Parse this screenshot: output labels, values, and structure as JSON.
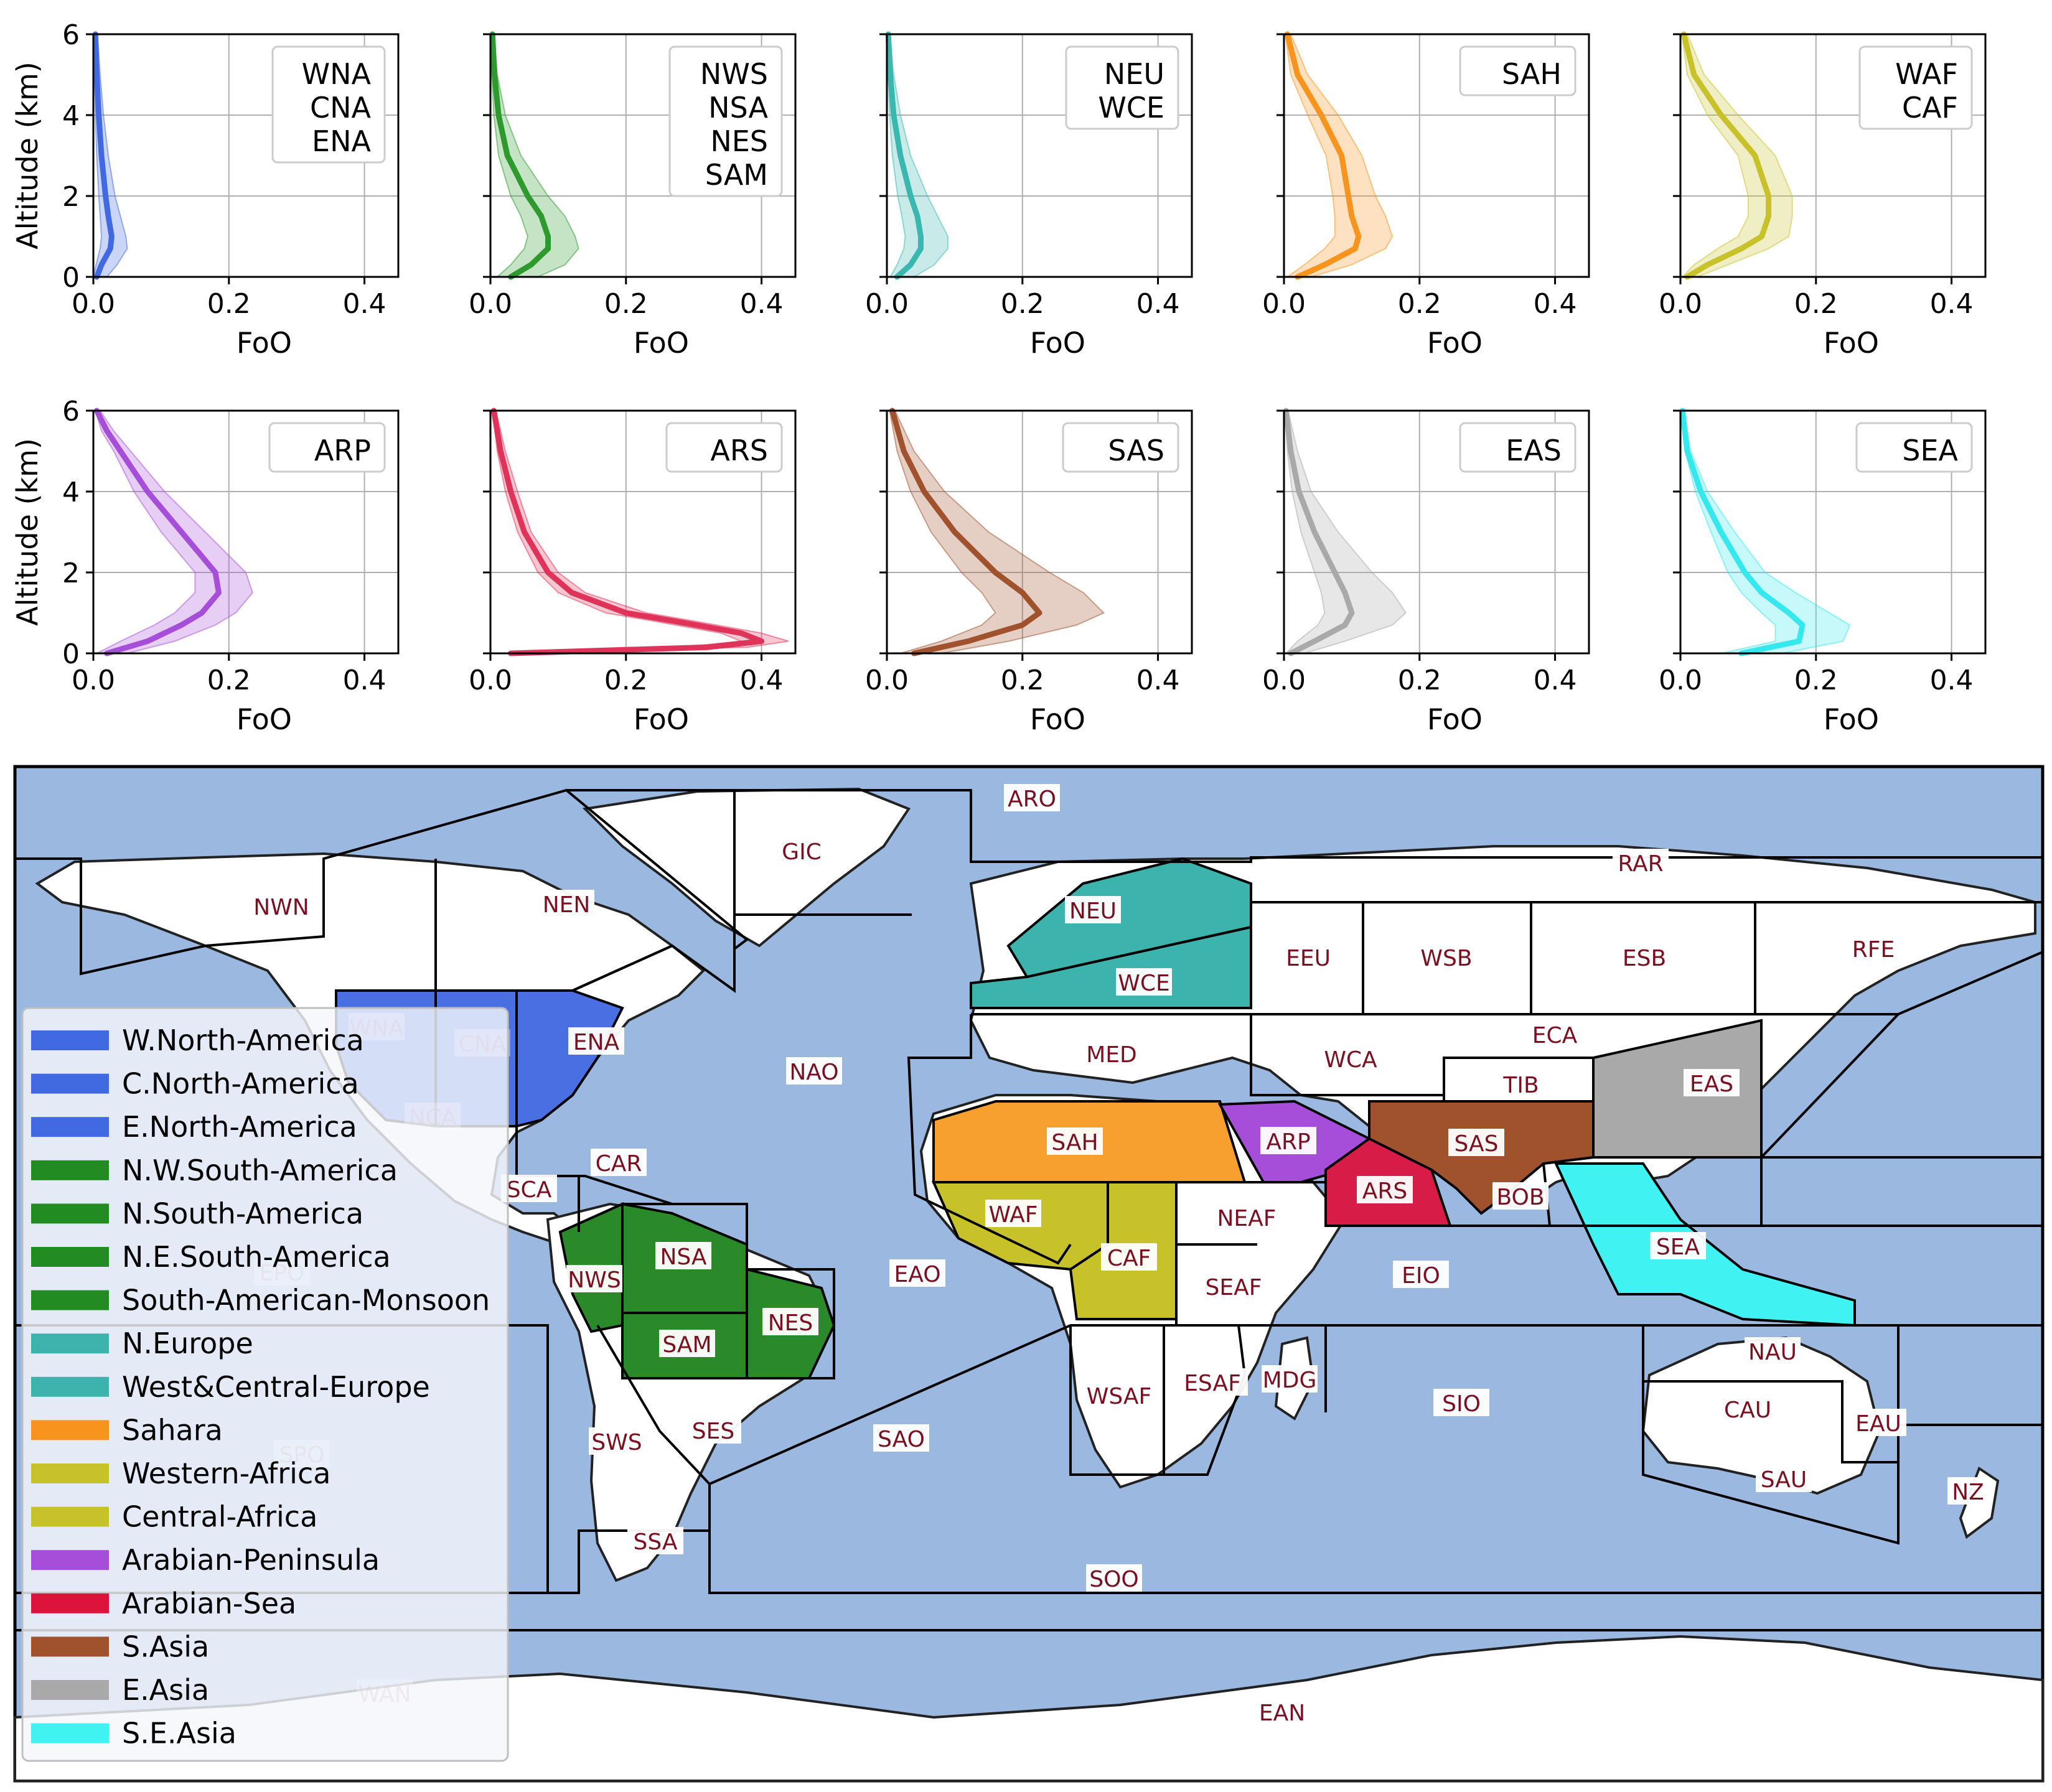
{
  "chart_data": [
    {
      "type": "line",
      "panel": "WNA/CNA/ENA",
      "legend_box": [
        "WNA",
        "CNA",
        "ENA"
      ],
      "color": "#4169e1",
      "xlabel": "FoO",
      "ylabel": "Altitude (km)",
      "xlim": [
        0,
        0.45
      ],
      "ylim": [
        0,
        6
      ],
      "xticks": [
        "0.0",
        "0.2",
        "0.4"
      ],
      "yticks": [
        "0",
        "2",
        "4",
        "6"
      ],
      "altitude": [
        0,
        0.3,
        0.7,
        1,
        1.5,
        2,
        3,
        4,
        5,
        6
      ],
      "mean": [
        0.005,
        0.012,
        0.025,
        0.027,
        0.022,
        0.018,
        0.012,
        0.008,
        0.005,
        0.003
      ],
      "lower": [
        0,
        0.004,
        0.01,
        0.012,
        0.01,
        0.008,
        0.005,
        0.003,
        0.002,
        0.001
      ],
      "upper": [
        0.02,
        0.035,
        0.05,
        0.048,
        0.04,
        0.032,
        0.022,
        0.015,
        0.01,
        0.006
      ]
    },
    {
      "type": "line",
      "panel": "NWS/NSA/NES/SAM",
      "legend_box": [
        "NWS",
        "NSA",
        "NES",
        "SAM"
      ],
      "color": "#2e9a2e",
      "xlabel": "FoO",
      "ylabel": "",
      "xlim": [
        0,
        0.45
      ],
      "ylim": [
        0,
        6
      ],
      "xticks": [
        "0.0",
        "0.2",
        "0.4"
      ],
      "yticks": [],
      "altitude": [
        0,
        0.3,
        0.7,
        1,
        1.5,
        2,
        3,
        4,
        5,
        6
      ],
      "mean": [
        0.03,
        0.06,
        0.085,
        0.085,
        0.075,
        0.055,
        0.025,
        0.012,
        0.006,
        0.003
      ],
      "lower": [
        0.01,
        0.03,
        0.05,
        0.055,
        0.045,
        0.03,
        0.012,
        0.005,
        0.002,
        0.001
      ],
      "upper": [
        0.07,
        0.11,
        0.13,
        0.125,
        0.11,
        0.085,
        0.045,
        0.022,
        0.01,
        0.005
      ]
    },
    {
      "type": "line",
      "panel": "NEU/WCE",
      "legend_box": [
        "NEU",
        "WCE"
      ],
      "color": "#3ab8b0",
      "xlabel": "FoO",
      "ylabel": "",
      "xlim": [
        0,
        0.45
      ],
      "ylim": [
        0,
        6
      ],
      "xticks": [
        "0.0",
        "0.2",
        "0.4"
      ],
      "yticks": [],
      "altitude": [
        0,
        0.3,
        0.7,
        1,
        1.5,
        2,
        3,
        4,
        5,
        6
      ],
      "mean": [
        0.015,
        0.035,
        0.05,
        0.05,
        0.045,
        0.035,
        0.02,
        0.01,
        0.005,
        0.002
      ],
      "lower": [
        0.005,
        0.015,
        0.025,
        0.027,
        0.022,
        0.016,
        0.008,
        0.004,
        0.002,
        0.001
      ],
      "upper": [
        0.04,
        0.07,
        0.09,
        0.09,
        0.075,
        0.06,
        0.035,
        0.02,
        0.01,
        0.004
      ]
    },
    {
      "type": "line",
      "panel": "SAH",
      "legend_box": [
        "SAH"
      ],
      "color": "#f7941d",
      "xlabel": "FoO",
      "ylabel": "",
      "xlim": [
        0,
        0.45
      ],
      "ylim": [
        0,
        6
      ],
      "xticks": [
        "0.0",
        "0.2",
        "0.4"
      ],
      "yticks": [],
      "altitude": [
        0,
        0.3,
        0.7,
        1,
        1.5,
        2,
        3,
        4,
        5,
        6
      ],
      "mean": [
        0.02,
        0.06,
        0.105,
        0.11,
        0.1,
        0.095,
        0.085,
        0.055,
        0.02,
        0.005
      ],
      "lower": [
        0.005,
        0.03,
        0.06,
        0.075,
        0.075,
        0.072,
        0.062,
        0.035,
        0.01,
        0.002
      ],
      "upper": [
        0.04,
        0.1,
        0.15,
        0.16,
        0.15,
        0.135,
        0.115,
        0.08,
        0.035,
        0.01
      ]
    },
    {
      "type": "line",
      "panel": "WAF/CAF",
      "legend_box": [
        "WAF",
        "CAF"
      ],
      "color": "#c8c22a",
      "xlabel": "FoO",
      "ylabel": "",
      "xlim": [
        0,
        0.45
      ],
      "ylim": [
        0,
        6
      ],
      "xticks": [
        "0.0",
        "0.2",
        "0.4"
      ],
      "yticks": [],
      "altitude": [
        0,
        0.3,
        0.7,
        1,
        1.5,
        2,
        3,
        4,
        5,
        6
      ],
      "mean": [
        0.01,
        0.04,
        0.09,
        0.12,
        0.13,
        0.13,
        0.11,
        0.06,
        0.02,
        0.005
      ],
      "lower": [
        0.003,
        0.02,
        0.055,
        0.085,
        0.1,
        0.1,
        0.085,
        0.04,
        0.01,
        0.002
      ],
      "upper": [
        0.025,
        0.07,
        0.13,
        0.16,
        0.165,
        0.165,
        0.14,
        0.085,
        0.035,
        0.01
      ]
    },
    {
      "type": "line",
      "panel": "ARP",
      "legend_box": [
        "ARP"
      ],
      "color": "#a64ed9",
      "xlabel": "FoO",
      "ylabel": "Altitude (km)",
      "xlim": [
        0,
        0.45
      ],
      "ylim": [
        0,
        6
      ],
      "xticks": [
        "0.0",
        "0.2",
        "0.4"
      ],
      "yticks": [
        "0",
        "2",
        "4",
        "6"
      ],
      "altitude": [
        0,
        0.3,
        0.7,
        1,
        1.5,
        2,
        3,
        4,
        5,
        5.5,
        6
      ],
      "mean": [
        0.02,
        0.08,
        0.13,
        0.16,
        0.185,
        0.18,
        0.13,
        0.08,
        0.04,
        0.02,
        0.005
      ],
      "lower": [
        0.005,
        0.04,
        0.09,
        0.12,
        0.15,
        0.15,
        0.1,
        0.06,
        0.03,
        0.012,
        0.003
      ],
      "upper": [
        0.05,
        0.12,
        0.18,
        0.21,
        0.235,
        0.225,
        0.165,
        0.105,
        0.055,
        0.03,
        0.01
      ]
    },
    {
      "type": "line",
      "panel": "ARS",
      "legend_box": [
        "ARS"
      ],
      "color": "#e0335a",
      "xlabel": "FoO",
      "ylabel": "",
      "xlim": [
        0,
        0.45
      ],
      "ylim": [
        0,
        6
      ],
      "xticks": [
        "0.0",
        "0.2",
        "0.4"
      ],
      "yticks": [],
      "altitude": [
        0,
        0.15,
        0.3,
        0.5,
        0.8,
        1,
        1.5,
        2,
        3,
        4,
        5,
        6
      ],
      "mean": [
        0.03,
        0.32,
        0.4,
        0.37,
        0.27,
        0.2,
        0.12,
        0.085,
        0.05,
        0.03,
        0.015,
        0.005
      ],
      "lower": [
        0.02,
        0.28,
        0.37,
        0.34,
        0.24,
        0.17,
        0.1,
        0.07,
        0.04,
        0.022,
        0.01,
        0.003
      ],
      "upper": [
        0.05,
        0.38,
        0.44,
        0.4,
        0.3,
        0.23,
        0.14,
        0.1,
        0.06,
        0.04,
        0.022,
        0.008
      ]
    },
    {
      "type": "line",
      "panel": "SAS",
      "legend_box": [
        "SAS"
      ],
      "color": "#a0522d",
      "xlabel": "FoO",
      "ylabel": "",
      "xlim": [
        0,
        0.45
      ],
      "ylim": [
        0,
        6
      ],
      "xticks": [
        "0.0",
        "0.2",
        "0.4"
      ],
      "yticks": [],
      "altitude": [
        0,
        0.3,
        0.7,
        1,
        1.5,
        2,
        3,
        4,
        5,
        6
      ],
      "mean": [
        0.04,
        0.12,
        0.2,
        0.225,
        0.2,
        0.16,
        0.1,
        0.055,
        0.025,
        0.008
      ],
      "lower": [
        0.02,
        0.08,
        0.14,
        0.16,
        0.14,
        0.11,
        0.065,
        0.035,
        0.015,
        0.004
      ],
      "upper": [
        0.08,
        0.18,
        0.28,
        0.32,
        0.29,
        0.24,
        0.15,
        0.085,
        0.04,
        0.012
      ]
    },
    {
      "type": "line",
      "panel": "EAS",
      "legend_box": [
        "EAS"
      ],
      "color": "#a9a9a9",
      "xlabel": "FoO",
      "ylabel": "",
      "xlim": [
        0,
        0.45
      ],
      "ylim": [
        0,
        6
      ],
      "xticks": [
        "0.0",
        "0.2",
        "0.4"
      ],
      "yticks": [],
      "altitude": [
        0,
        0.3,
        0.7,
        1,
        1.5,
        2,
        3,
        4,
        5,
        6
      ],
      "mean": [
        0.01,
        0.045,
        0.09,
        0.1,
        0.09,
        0.075,
        0.045,
        0.022,
        0.01,
        0.003
      ],
      "lower": [
        0.003,
        0.02,
        0.05,
        0.06,
        0.055,
        0.045,
        0.025,
        0.012,
        0.005,
        0.001
      ],
      "upper": [
        0.03,
        0.09,
        0.16,
        0.18,
        0.16,
        0.13,
        0.08,
        0.04,
        0.02,
        0.006
      ]
    },
    {
      "type": "line",
      "panel": "SEA",
      "legend_box": [
        "SEA"
      ],
      "color": "#35e8ee",
      "xlabel": "FoO",
      "ylabel": "",
      "xlim": [
        0,
        0.45
      ],
      "ylim": [
        0,
        6
      ],
      "xticks": [
        "0.0",
        "0.2",
        "0.4"
      ],
      "yticks": [],
      "altitude": [
        0,
        0.3,
        0.7,
        1,
        1.5,
        2,
        3,
        4,
        5,
        6
      ],
      "mean": [
        0.09,
        0.175,
        0.18,
        0.16,
        0.12,
        0.095,
        0.06,
        0.03,
        0.01,
        0.003
      ],
      "lower": [
        0.06,
        0.14,
        0.14,
        0.12,
        0.09,
        0.07,
        0.045,
        0.022,
        0.007,
        0.002
      ],
      "upper": [
        0.15,
        0.24,
        0.25,
        0.22,
        0.17,
        0.125,
        0.08,
        0.04,
        0.015,
        0.005
      ]
    }
  ],
  "map": {
    "legend": [
      {
        "label": "W.North-America",
        "color": "#4169e1"
      },
      {
        "label": "C.North-America",
        "color": "#4169e1"
      },
      {
        "label": "E.North-America",
        "color": "#4169e1"
      },
      {
        "label": "N.W.South-America",
        "color": "#228b22"
      },
      {
        "label": "N.South-America",
        "color": "#228b22"
      },
      {
        "label": "N.E.South-America",
        "color": "#228b22"
      },
      {
        "label": "South-American-Monsoon",
        "color": "#228b22"
      },
      {
        "label": "N.Europe",
        "color": "#3cb3ad"
      },
      {
        "label": "West&Central-Europe",
        "color": "#3cb3ad"
      },
      {
        "label": "Sahara",
        "color": "#f7941d"
      },
      {
        "label": "Western-Africa",
        "color": "#c8c22a"
      },
      {
        "label": "Central-Africa",
        "color": "#c8c22a"
      },
      {
        "label": "Arabian-Peninsula",
        "color": "#a64ed9"
      },
      {
        "label": "Arabian-Sea",
        "color": "#dc143c"
      },
      {
        "label": "S.Asia",
        "color": "#a0522d"
      },
      {
        "label": "E.Asia",
        "color": "#a9a9a9"
      },
      {
        "label": "S.E.Asia",
        "color": "#40f2f2"
      }
    ],
    "region_labels": [
      "ARO",
      "GIC",
      "RAR",
      "NWN",
      "NEN",
      "NEU",
      "WCE",
      "EEU",
      "WSB",
      "ESB",
      "RFE",
      "WNA",
      "CNA",
      "ENA",
      "NAO",
      "MED",
      "WCA",
      "ECA",
      "TIB",
      "EAS",
      "NCA",
      "SAH",
      "ARP",
      "SAS",
      "ARS",
      "BOB",
      "CAR",
      "SCA",
      "WAF",
      "CAF",
      "NEAF",
      "NWS",
      "NSA",
      "EPO",
      "EAO",
      "SEAF",
      "EIO",
      "SEA",
      "SAM",
      "NES",
      "NAU",
      "WSAF",
      "ESAF",
      "MDG",
      "SIO",
      "CAU",
      "EAU",
      "SWS",
      "SES",
      "SAO",
      "SPO",
      "SAU",
      "NZ",
      "SSA",
      "SOO",
      "WAN",
      "EAN"
    ],
    "colors": {
      "ocean": "#9ab8e0",
      "land": "#ffffff",
      "border": "#000000"
    }
  }
}
